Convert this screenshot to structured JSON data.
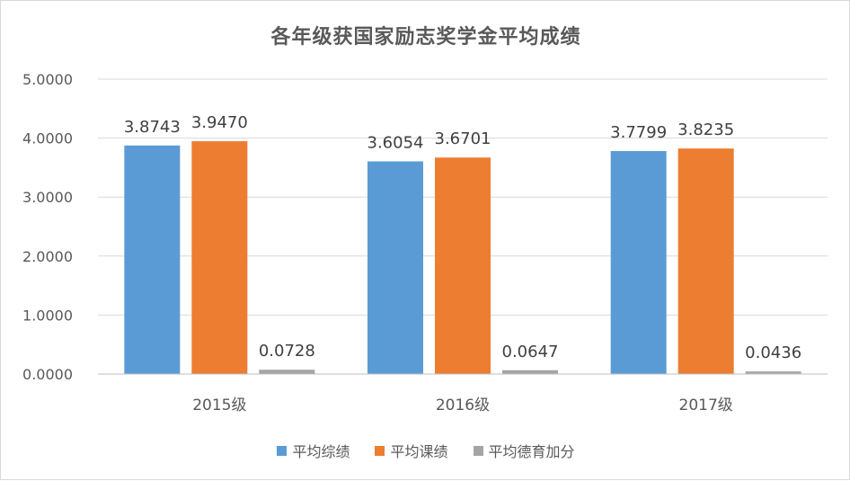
{
  "chart_data": {
    "type": "bar",
    "title": "各年级获国家励志奖学金平均成绩",
    "categories": [
      "2015级",
      "2016级",
      "2017级"
    ],
    "series": [
      {
        "name": "平均综绩",
        "values": [
          3.8743,
          3.6054,
          3.7799
        ],
        "labels": [
          "3.8743",
          "3.6054",
          "3.7799"
        ],
        "color": "#5b9bd5"
      },
      {
        "name": "平均课绩",
        "values": [
          3.947,
          3.6701,
          3.8235
        ],
        "labels": [
          "3.9470",
          "3.6701",
          "3.8235"
        ],
        "color": "#ed7d31"
      },
      {
        "name": "平均德育加分",
        "values": [
          0.0728,
          0.0647,
          0.0436
        ],
        "labels": [
          "0.0728",
          "0.0647",
          "0.0436"
        ],
        "color": "#a5a5a5"
      }
    ],
    "ylim": [
      0,
      5
    ],
    "yticks": [
      "0.0000",
      "1.0000",
      "2.0000",
      "3.0000",
      "4.0000",
      "5.0000"
    ],
    "grid": true,
    "legend_position": "bottom"
  }
}
